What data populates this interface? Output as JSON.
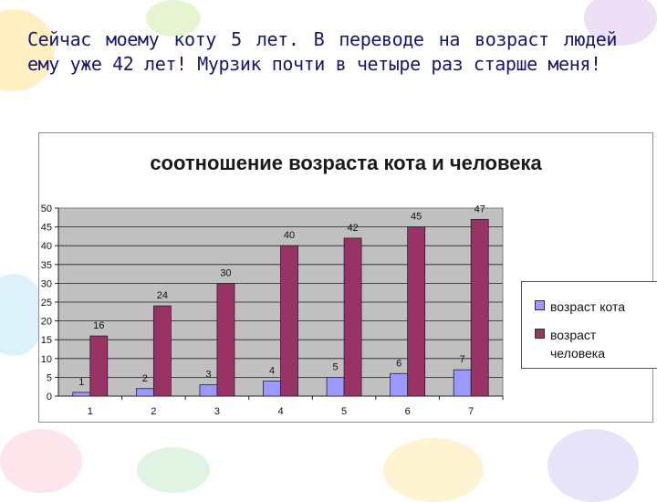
{
  "intro_text": "Сейчас моему коту 5 лет. В переводе на возраст людей ему уже 42 лет! Мурзик почти в четыре  раз старше меня!",
  "colors": {
    "cat": "#9999ff",
    "human": "#993366",
    "plot_bg": "#c0c0c0",
    "text": "#16166e"
  },
  "chart_data": {
    "type": "bar",
    "title": "соотношение возраста кота и человека",
    "xlabel": "",
    "ylabel": "",
    "categories": [
      "1",
      "2",
      "3",
      "4",
      "5",
      "6",
      "7"
    ],
    "ylim": [
      0,
      50
    ],
    "yticks": [
      0,
      5,
      10,
      15,
      20,
      25,
      30,
      35,
      40,
      45,
      50
    ],
    "grid": true,
    "legend_position": "right",
    "series": [
      {
        "name": "возраст кота",
        "values": [
          1,
          2,
          3,
          4,
          5,
          6,
          7
        ]
      },
      {
        "name": "возраст человека",
        "values": [
          16,
          24,
          30,
          40,
          42,
          45,
          47
        ]
      }
    ]
  }
}
